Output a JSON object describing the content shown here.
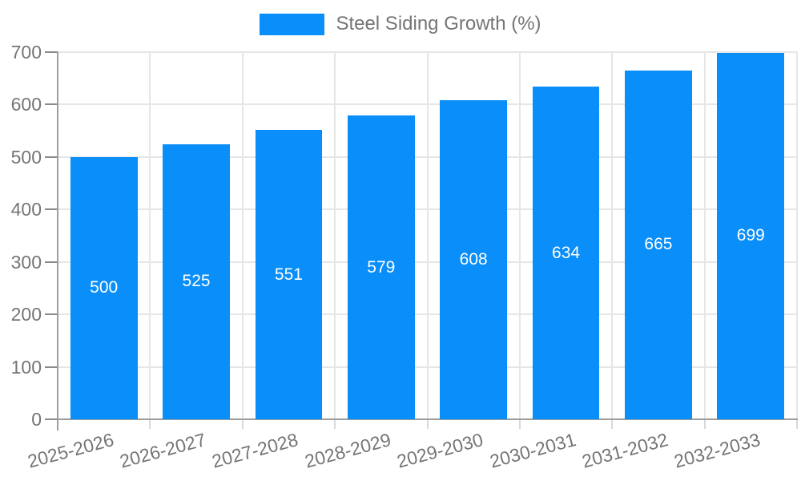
{
  "legend": {
    "label": "Steel Siding Growth (%)",
    "swatch_color": "#0a8ef9"
  },
  "chart_data": {
    "type": "bar",
    "title": "Steel Siding Growth (%)",
    "series_name": "Steel Siding Growth (%)",
    "categories": [
      "2025-2026",
      "2026-2027",
      "2027-2028",
      "2028-2029",
      "2029-2030",
      "2030-2031",
      "2031-2032",
      "2032-2033"
    ],
    "values": [
      500,
      525,
      551,
      579,
      608,
      634,
      665,
      699
    ],
    "value_labels": [
      "500",
      "525",
      "551",
      "579",
      "608",
      "634",
      "665",
      "699"
    ],
    "xlabel": "",
    "ylabel": "",
    "ylim": [
      0,
      700
    ],
    "ytick_step": 100,
    "yticks": [
      0,
      100,
      200,
      300,
      400,
      500,
      600,
      700
    ],
    "grid": true,
    "legend_position": "top",
    "bar_color": "#0a8ef9",
    "value_label_color": "#ffffff",
    "axis_text_color": "#757575",
    "gridline_color": "#e6e6e6",
    "axis_line_color": "#9e9e9e"
  }
}
